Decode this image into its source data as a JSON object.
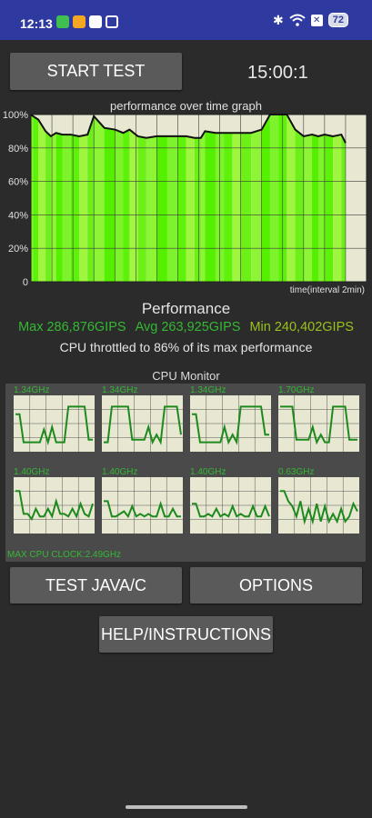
{
  "status_bar": {
    "time": "12:13",
    "battery": "72",
    "bluetooth_icon": "bluetooth-icon",
    "wifi_icon": "wifi-icon",
    "notif_icons": [
      "store-icon",
      "pinwheel-icon",
      "youtube-icon",
      "window-icon"
    ]
  },
  "controls": {
    "start_label": "START TEST",
    "timer": "15:00:1",
    "java_label": "TEST JAVA/C",
    "options_label": "OPTIONS",
    "help_label": "HELP/INSTRUCTIONS"
  },
  "graph": {
    "title": "performance over time graph",
    "xlabel": "time(interval 2min)"
  },
  "chart_data": {
    "type": "line",
    "title": "performance over time graph",
    "xlabel": "time(interval 2min)",
    "ylabel": "",
    "yticks": [
      "100%",
      "80%",
      "60%",
      "40%",
      "20%",
      "0"
    ],
    "ylim": [
      0,
      100
    ],
    "xlim": [
      0,
      16
    ],
    "grid": true,
    "x": [
      0,
      0.1,
      0.35,
      0.7,
      0.95,
      1.2,
      1.5,
      1.9,
      2.3,
      2.7,
      3.0,
      3.5,
      4.0,
      4.4,
      4.7,
      5.1,
      5.5,
      6.0,
      6.5,
      7.0,
      7.4,
      7.8,
      8.1,
      8.3,
      8.8,
      9.2,
      9.6,
      10.0,
      10.5,
      11.0,
      11.4,
      11.8,
      12.2,
      12.6,
      13.0,
      13.4,
      13.7,
      14.0,
      14.4,
      14.8,
      15.0
    ],
    "series": [
      {
        "values": [
          100,
          99,
          97,
          90,
          87,
          89,
          88,
          88,
          87,
          88,
          99,
          92,
          91,
          89,
          91,
          87,
          86,
          87,
          87,
          87,
          87,
          86,
          86,
          90,
          89,
          89,
          89,
          89,
          89,
          91,
          100,
          100,
          100,
          91,
          87,
          88,
          87,
          88,
          87,
          88,
          83
        ],
        "color": "#111111"
      }
    ]
  },
  "performance": {
    "title": "Performance",
    "max": "Max 286,876GIPS",
    "avg": "Avg 263,925GIPS",
    "min": "Min 240,402GIPS",
    "throttle": "CPU throttled to 86% of its max performance"
  },
  "cpu_monitor": {
    "title": "CPU Monitor",
    "max_clock": "MAX CPU CLOCK:2.49GHz",
    "cores": [
      {
        "freq": "1.34GHz",
        "values": [
          0.7,
          0.7,
          0.15,
          0.15,
          0.15,
          0.15,
          0.15,
          0.4,
          0.15,
          0.45,
          0.15,
          0.15,
          0.15,
          0.85,
          0.85,
          0.85,
          0.85,
          0.85,
          0.2,
          0.2
        ]
      },
      {
        "freq": "1.34GHz",
        "values": [
          0.15,
          0.15,
          0.85,
          0.85,
          0.85,
          0.85,
          0.85,
          0.2,
          0.2,
          0.2,
          0.2,
          0.45,
          0.15,
          0.3,
          0.15,
          0.85,
          0.85,
          0.85,
          0.85,
          0.3
        ]
      },
      {
        "freq": "1.34GHz",
        "values": [
          0.7,
          0.7,
          0.15,
          0.15,
          0.15,
          0.15,
          0.15,
          0.15,
          0.45,
          0.15,
          0.3,
          0.15,
          0.85,
          0.85,
          0.85,
          0.85,
          0.85,
          0.85,
          0.3,
          0.3
        ]
      },
      {
        "freq": "1.70GHz",
        "values": [
          0.85,
          0.85,
          0.85,
          0.85,
          0.2,
          0.2,
          0.2,
          0.2,
          0.45,
          0.15,
          0.3,
          0.15,
          0.15,
          0.85,
          0.85,
          0.85,
          0.85,
          0.2,
          0.2,
          0.2
        ]
      },
      {
        "freq": "1.40GHz",
        "values": [
          0.8,
          0.8,
          0.35,
          0.35,
          0.25,
          0.45,
          0.3,
          0.3,
          0.45,
          0.3,
          0.6,
          0.35,
          0.35,
          0.3,
          0.45,
          0.3,
          0.55,
          0.35,
          0.3,
          0.55
        ]
      },
      {
        "freq": "1.40GHz",
        "values": [
          0.6,
          0.6,
          0.3,
          0.3,
          0.35,
          0.4,
          0.3,
          0.5,
          0.3,
          0.35,
          0.3,
          0.35,
          0.3,
          0.3,
          0.55,
          0.3,
          0.3,
          0.45,
          0.3,
          0.3
        ]
      },
      {
        "freq": "1.40GHz",
        "values": [
          0.55,
          0.55,
          0.3,
          0.3,
          0.35,
          0.3,
          0.45,
          0.3,
          0.35,
          0.3,
          0.5,
          0.3,
          0.35,
          0.3,
          0.3,
          0.5,
          0.3,
          0.3,
          0.5,
          0.3
        ]
      },
      {
        "freq": "0.63GHz",
        "values": [
          0.8,
          0.8,
          0.6,
          0.5,
          0.3,
          0.6,
          0.2,
          0.45,
          0.2,
          0.55,
          0.2,
          0.5,
          0.2,
          0.35,
          0.2,
          0.45,
          0.2,
          0.3,
          0.55,
          0.4
        ]
      }
    ]
  },
  "colors": {
    "status_bar": "#2f3aa0",
    "background": "#2b2b2b",
    "button": "#5a5a5a",
    "accent_green": "#34b834",
    "graph_bg": "#e8e8d2",
    "cpu_bg": "#e8e8d2"
  }
}
